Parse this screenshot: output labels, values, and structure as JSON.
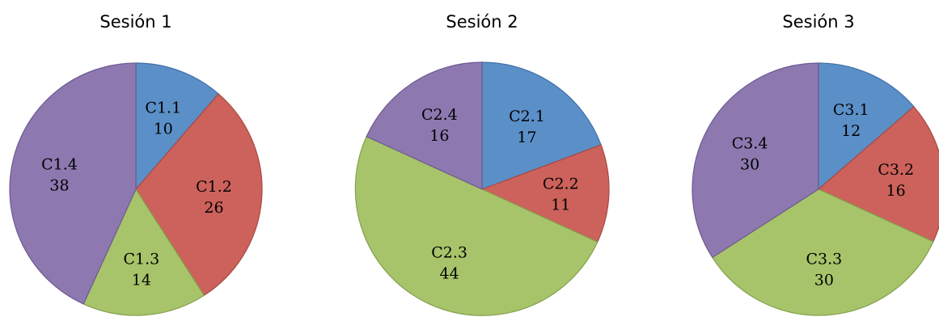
{
  "chart_data": [
    {
      "type": "pie",
      "title": "Sesión 1",
      "categories": [
        "C1.1",
        "C1.2",
        "C1.3",
        "C1.4"
      ],
      "values": [
        10,
        26,
        14,
        38
      ],
      "colors": [
        "#5b8fc8",
        "#cc625b",
        "#a7c46a",
        "#8d78b0"
      ]
    },
    {
      "type": "pie",
      "title": "Sesión 2",
      "categories": [
        "C2.1",
        "C2.2",
        "C2.3",
        "C2.4"
      ],
      "values": [
        17,
        11,
        44,
        16
      ],
      "colors": [
        "#5b8fc8",
        "#cc625b",
        "#a7c46a",
        "#8d78b0"
      ]
    },
    {
      "type": "pie",
      "title": "Sesión 3",
      "categories": [
        "C3.1",
        "C3.2",
        "C3.3",
        "C3.4"
      ],
      "values": [
        12,
        16,
        30,
        30
      ],
      "colors": [
        "#5b8fc8",
        "#cc625b",
        "#a7c46a",
        "#8d78b0"
      ]
    }
  ]
}
